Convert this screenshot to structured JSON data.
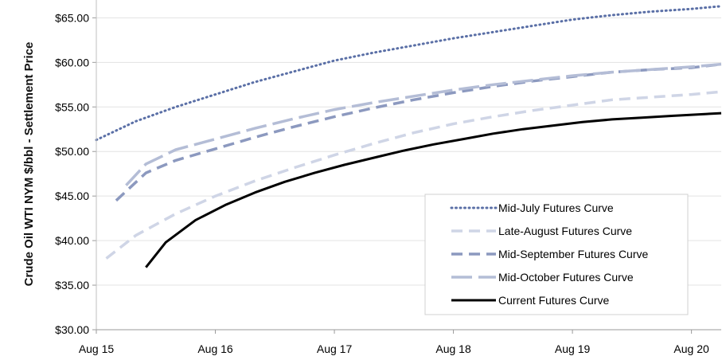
{
  "chart_data": {
    "type": "line",
    "ylabel": "Crude Oil WTI NYM $/bbl - Settlement Price",
    "xlabel": "",
    "x_ticks": [
      "Aug 15",
      "Aug 16",
      "Aug 17",
      "Aug 18",
      "Aug 19",
      "Aug 20"
    ],
    "y_ticks": [
      "$30.00",
      "$35.00",
      "$40.00",
      "$45.00",
      "$50.00",
      "$55.00",
      "$60.00",
      "$65.00"
    ],
    "ylim": [
      30,
      67
    ],
    "xlim": [
      "2015-08",
      "2020-11"
    ],
    "grid": "horizontal",
    "legend_placement": "bottom-right",
    "series": [
      {
        "name": "Mid-July Futures Curve",
        "style": "dotted",
        "color": "#5a6fa6",
        "points": [
          [
            "2015-08",
            51.3
          ],
          [
            "2015-12",
            53.4
          ],
          [
            "2016-04",
            55.0
          ],
          [
            "2016-08",
            56.4
          ],
          [
            "2016-12",
            57.8
          ],
          [
            "2017-04",
            59.0
          ],
          [
            "2017-08",
            60.2
          ],
          [
            "2017-12",
            61.1
          ],
          [
            "2018-04",
            61.9
          ],
          [
            "2018-08",
            62.7
          ],
          [
            "2018-12",
            63.4
          ],
          [
            "2019-04",
            64.1
          ],
          [
            "2019-08",
            64.8
          ],
          [
            "2019-12",
            65.3
          ],
          [
            "2020-04",
            65.7
          ],
          [
            "2020-08",
            66.0
          ],
          [
            "2020-11",
            66.3
          ]
        ]
      },
      {
        "name": "Late-August Futures Curve",
        "style": "dashed",
        "color": "#cfd5e6",
        "points": [
          [
            "2015-09",
            38.0
          ],
          [
            "2015-12",
            40.6
          ],
          [
            "2016-04",
            43.0
          ],
          [
            "2016-08",
            45.0
          ],
          [
            "2016-12",
            46.7
          ],
          [
            "2017-04",
            48.2
          ],
          [
            "2017-08",
            49.6
          ],
          [
            "2017-12",
            50.9
          ],
          [
            "2018-04",
            52.1
          ],
          [
            "2018-08",
            53.1
          ],
          [
            "2018-12",
            53.9
          ],
          [
            "2019-04",
            54.6
          ],
          [
            "2019-08",
            55.2
          ],
          [
            "2019-12",
            55.8
          ],
          [
            "2020-04",
            56.1
          ],
          [
            "2020-08",
            56.4
          ],
          [
            "2020-11",
            56.7
          ]
        ]
      },
      {
        "name": "Mid-September Futures Curve",
        "style": "dashed",
        "color": "#8c99bf",
        "points": [
          [
            "2015-10",
            44.5
          ],
          [
            "2016-01",
            47.6
          ],
          [
            "2016-04",
            49.0
          ],
          [
            "2016-08",
            50.3
          ],
          [
            "2016-12",
            51.6
          ],
          [
            "2017-04",
            52.8
          ],
          [
            "2017-08",
            53.9
          ],
          [
            "2017-12",
            54.9
          ],
          [
            "2018-04",
            55.8
          ],
          [
            "2018-08",
            56.6
          ],
          [
            "2018-12",
            57.3
          ],
          [
            "2019-04",
            57.9
          ],
          [
            "2019-08",
            58.4
          ],
          [
            "2019-12",
            58.9
          ],
          [
            "2020-04",
            59.2
          ],
          [
            "2020-08",
            59.4
          ],
          [
            "2020-11",
            59.8
          ]
        ]
      },
      {
        "name": "Mid-October Futures Curve",
        "style": "long-dash",
        "color": "#b4bdd6",
        "points": [
          [
            "2015-11",
            46.2
          ],
          [
            "2016-01",
            48.6
          ],
          [
            "2016-04",
            50.2
          ],
          [
            "2016-08",
            51.4
          ],
          [
            "2016-12",
            52.6
          ],
          [
            "2017-04",
            53.7
          ],
          [
            "2017-08",
            54.7
          ],
          [
            "2017-12",
            55.5
          ],
          [
            "2018-04",
            56.2
          ],
          [
            "2018-08",
            56.9
          ],
          [
            "2018-12",
            57.5
          ],
          [
            "2019-04",
            58.0
          ],
          [
            "2019-08",
            58.5
          ],
          [
            "2019-12",
            58.9
          ],
          [
            "2020-04",
            59.2
          ],
          [
            "2020-08",
            59.5
          ],
          [
            "2020-11",
            59.8
          ]
        ]
      },
      {
        "name": "Current Futures Curve",
        "style": "solid",
        "color": "#000000",
        "points": [
          [
            "2016-01",
            37.0
          ],
          [
            "2016-03",
            39.8
          ],
          [
            "2016-06",
            42.3
          ],
          [
            "2016-09",
            44.0
          ],
          [
            "2016-12",
            45.4
          ],
          [
            "2017-03",
            46.6
          ],
          [
            "2017-06",
            47.6
          ],
          [
            "2017-09",
            48.5
          ],
          [
            "2017-12",
            49.3
          ],
          [
            "2018-03",
            50.1
          ],
          [
            "2018-06",
            50.8
          ],
          [
            "2018-09",
            51.4
          ],
          [
            "2018-12",
            52.0
          ],
          [
            "2019-03",
            52.5
          ],
          [
            "2019-06",
            52.9
          ],
          [
            "2019-09",
            53.3
          ],
          [
            "2019-12",
            53.6
          ],
          [
            "2020-03",
            53.8
          ],
          [
            "2020-06",
            54.0
          ],
          [
            "2020-11",
            54.3
          ]
        ]
      }
    ]
  }
}
